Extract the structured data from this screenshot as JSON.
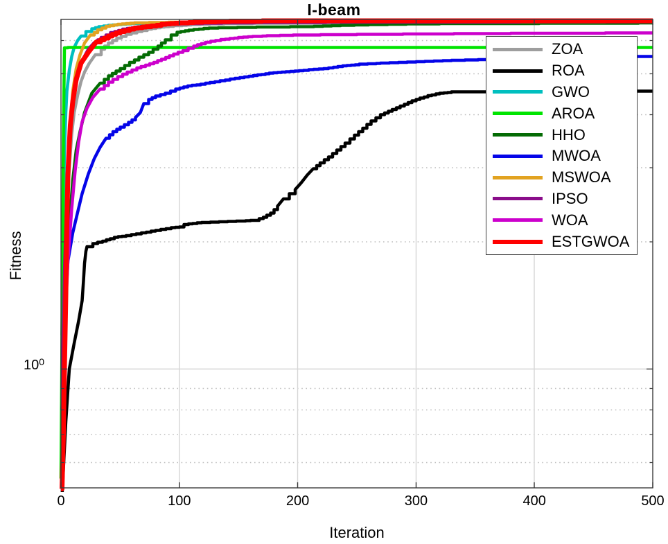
{
  "title": "I-beam",
  "axis": {
    "xlabel": "Iteration",
    "ylabel": "Fitness",
    "ytick_base": "10",
    "ytick_exp": "0"
  },
  "chart_data": {
    "type": "line",
    "title": "I-beam",
    "xlabel": "Iteration",
    "ylabel": "Fitness",
    "yscale": "log",
    "grid": true,
    "legend_position": "upper right",
    "xlim": [
      0,
      500
    ],
    "ylim": [
      0.523,
      6.73
    ],
    "xticks": [
      0,
      100,
      200,
      300,
      400,
      500
    ],
    "ytick_values": [
      1
    ],
    "yminor_values": [
      0.6,
      0.7,
      0.8,
      0.9,
      2,
      3,
      4,
      5,
      6
    ],
    "series": [
      {
        "name": "ZOA",
        "color": "#9e9e9e",
        "width": 4.5,
        "points": [
          [
            1,
            0.9
          ],
          [
            3,
            1.6
          ],
          [
            5,
            2.3
          ],
          [
            7,
            3.0
          ],
          [
            9,
            3.6
          ],
          [
            11,
            4.05
          ],
          [
            14,
            4.45
          ],
          [
            17,
            4.8
          ],
          [
            20,
            5.05
          ],
          [
            24,
            5.3
          ],
          [
            29,
            5.55
          ],
          [
            34,
            5.72
          ],
          [
            40,
            5.92
          ],
          [
            47,
            6.08
          ],
          [
            55,
            6.2
          ],
          [
            64,
            6.3
          ],
          [
            73,
            6.38
          ],
          [
            84,
            6.45
          ],
          [
            95,
            6.5
          ],
          [
            110,
            6.54
          ],
          [
            130,
            6.57
          ],
          [
            170,
            6.59
          ],
          [
            250,
            6.6
          ],
          [
            500,
            6.6
          ]
        ]
      },
      {
        "name": "ROA",
        "color": "#000000",
        "width": 4.5,
        "points": [
          [
            1,
            0.5
          ],
          [
            4,
            0.75
          ],
          [
            7,
            1.0
          ],
          [
            11,
            1.15
          ],
          [
            15,
            1.3
          ],
          [
            18,
            1.45
          ],
          [
            19,
            1.62
          ],
          [
            20,
            1.78
          ],
          [
            21,
            1.9
          ],
          [
            22,
            1.95
          ],
          [
            27,
            1.98
          ],
          [
            35,
            2.01
          ],
          [
            45,
            2.05
          ],
          [
            55,
            2.07
          ],
          [
            68,
            2.1
          ],
          [
            80,
            2.13
          ],
          [
            93,
            2.16
          ],
          [
            100,
            2.17
          ],
          [
            104,
            2.2
          ],
          [
            115,
            2.22
          ],
          [
            130,
            2.23
          ],
          [
            148,
            2.24
          ],
          [
            164,
            2.25
          ],
          [
            171,
            2.29
          ],
          [
            177,
            2.34
          ],
          [
            183,
            2.43
          ],
          [
            188,
            2.53
          ],
          [
            193,
            2.6
          ],
          [
            198,
            2.66
          ],
          [
            203,
            2.76
          ],
          [
            208,
            2.88
          ],
          [
            213,
            2.98
          ],
          [
            219,
            3.08
          ],
          [
            226,
            3.18
          ],
          [
            233,
            3.3
          ],
          [
            240,
            3.43
          ],
          [
            248,
            3.58
          ],
          [
            255,
            3.72
          ],
          [
            262,
            3.87
          ],
          [
            270,
            4.0
          ],
          [
            280,
            4.12
          ],
          [
            290,
            4.24
          ],
          [
            300,
            4.35
          ],
          [
            310,
            4.44
          ],
          [
            320,
            4.5
          ],
          [
            330,
            4.53
          ],
          [
            420,
            4.54
          ],
          [
            500,
            4.55
          ]
        ]
      },
      {
        "name": "GWO",
        "color": "#00bfbf",
        "width": 4.5,
        "points": [
          [
            1,
            1.2
          ],
          [
            2,
            2.2
          ],
          [
            3,
            3.3
          ],
          [
            4,
            4.05
          ],
          [
            5,
            4.55
          ],
          [
            7,
            5.1
          ],
          [
            9,
            5.5
          ],
          [
            11,
            5.78
          ],
          [
            14,
            6.0
          ],
          [
            17,
            6.15
          ],
          [
            21,
            6.3
          ],
          [
            26,
            6.4
          ],
          [
            32,
            6.47
          ],
          [
            40,
            6.52
          ],
          [
            55,
            6.57
          ],
          [
            75,
            6.6
          ],
          [
            110,
            6.62
          ],
          [
            500,
            6.63
          ]
        ]
      },
      {
        "name": "AROA",
        "color": "#00e400",
        "width": 4.5,
        "points": [
          [
            0,
            0.55
          ],
          [
            1,
            1.2
          ],
          [
            2,
            3.5
          ],
          [
            3,
            5.76
          ],
          [
            6,
            5.78
          ],
          [
            500,
            5.78
          ]
        ]
      },
      {
        "name": "HHO",
        "color": "#046b04",
        "width": 4.5,
        "points": [
          [
            1,
            0.8
          ],
          [
            4,
            1.5
          ],
          [
            7,
            2.2
          ],
          [
            10,
            2.8
          ],
          [
            13,
            3.3
          ],
          [
            16,
            3.65
          ],
          [
            20,
            4.05
          ],
          [
            26,
            4.5
          ],
          [
            33,
            4.75
          ],
          [
            40,
            4.95
          ],
          [
            50,
            5.15
          ],
          [
            58,
            5.32
          ],
          [
            66,
            5.48
          ],
          [
            74,
            5.62
          ],
          [
            82,
            5.82
          ],
          [
            88,
            6.02
          ],
          [
            93,
            6.18
          ],
          [
            98,
            6.28
          ],
          [
            108,
            6.35
          ],
          [
            125,
            6.42
          ],
          [
            165,
            6.45
          ],
          [
            210,
            6.47
          ],
          [
            240,
            6.52
          ],
          [
            300,
            6.57
          ],
          [
            500,
            6.6
          ]
        ]
      },
      {
        "name": "MWOA",
        "color": "#0505e8",
        "width": 4.5,
        "points": [
          [
            1,
            0.8
          ],
          [
            3,
            1.3
          ],
          [
            6,
            1.8
          ],
          [
            10,
            2.1
          ],
          [
            14,
            2.35
          ],
          [
            18,
            2.6
          ],
          [
            23,
            2.9
          ],
          [
            28,
            3.15
          ],
          [
            33,
            3.35
          ],
          [
            38,
            3.52
          ],
          [
            44,
            3.65
          ],
          [
            50,
            3.74
          ],
          [
            57,
            3.84
          ],
          [
            63,
            3.94
          ],
          [
            67,
            4.05
          ],
          [
            70,
            4.25
          ],
          [
            74,
            4.35
          ],
          [
            80,
            4.43
          ],
          [
            88,
            4.5
          ],
          [
            97,
            4.6
          ],
          [
            107,
            4.68
          ],
          [
            118,
            4.73
          ],
          [
            130,
            4.79
          ],
          [
            143,
            4.86
          ],
          [
            155,
            4.92
          ],
          [
            166,
            4.97
          ],
          [
            176,
            5.02
          ],
          [
            190,
            5.06
          ],
          [
            205,
            5.1
          ],
          [
            222,
            5.15
          ],
          [
            238,
            5.22
          ],
          [
            252,
            5.27
          ],
          [
            270,
            5.3
          ],
          [
            300,
            5.34
          ],
          [
            330,
            5.38
          ],
          [
            360,
            5.41
          ],
          [
            400,
            5.43
          ],
          [
            440,
            5.44
          ],
          [
            465,
            5.49
          ],
          [
            500,
            5.5
          ]
        ]
      },
      {
        "name": "MSWOA",
        "color": "#e2a321",
        "width": 4.5,
        "points": [
          [
            1,
            0.6
          ],
          [
            2,
            1.0
          ],
          [
            4,
            1.8
          ],
          [
            6,
            2.8
          ],
          [
            8,
            3.8
          ],
          [
            10,
            4.55
          ],
          [
            13,
            5.15
          ],
          [
            16,
            5.55
          ],
          [
            20,
            5.92
          ],
          [
            25,
            6.18
          ],
          [
            31,
            6.36
          ],
          [
            38,
            6.48
          ],
          [
            48,
            6.56
          ],
          [
            62,
            6.6
          ],
          [
            95,
            6.63
          ],
          [
            500,
            6.65
          ]
        ]
      },
      {
        "name": "IPSO",
        "color": "#8a0d8a",
        "width": 4.5,
        "points": [
          [
            1,
            0.9
          ],
          [
            3,
            1.7
          ],
          [
            5,
            2.6
          ],
          [
            7,
            3.4
          ],
          [
            9,
            4.0
          ],
          [
            11,
            4.4
          ],
          [
            13,
            4.75
          ],
          [
            16,
            5.15
          ],
          [
            19,
            5.45
          ],
          [
            23,
            5.72
          ],
          [
            28,
            5.93
          ],
          [
            34,
            6.1
          ],
          [
            42,
            6.26
          ],
          [
            52,
            6.38
          ],
          [
            64,
            6.46
          ],
          [
            78,
            6.52
          ],
          [
            95,
            6.56
          ],
          [
            120,
            6.59
          ],
          [
            160,
            6.61
          ],
          [
            260,
            6.63
          ],
          [
            500,
            6.64
          ]
        ]
      },
      {
        "name": "WOA",
        "color": "#cc00cc",
        "width": 4.5,
        "points": [
          [
            1,
            0.7
          ],
          [
            3,
            1.2
          ],
          [
            6,
            1.8
          ],
          [
            9,
            2.4
          ],
          [
            12,
            2.95
          ],
          [
            15,
            3.45
          ],
          [
            18,
            3.85
          ],
          [
            22,
            4.15
          ],
          [
            27,
            4.4
          ],
          [
            33,
            4.6
          ],
          [
            40,
            4.78
          ],
          [
            48,
            4.93
          ],
          [
            56,
            5.05
          ],
          [
            64,
            5.17
          ],
          [
            75,
            5.28
          ],
          [
            85,
            5.42
          ],
          [
            95,
            5.57
          ],
          [
            103,
            5.68
          ],
          [
            112,
            5.82
          ],
          [
            122,
            5.94
          ],
          [
            135,
            6.03
          ],
          [
            150,
            6.1
          ],
          [
            170,
            6.15
          ],
          [
            200,
            6.18
          ],
          [
            250,
            6.2
          ],
          [
            320,
            6.22
          ],
          [
            400,
            6.24
          ],
          [
            500,
            6.25
          ]
        ]
      },
      {
        "name": "ESTGWOA",
        "color": "#ff0000",
        "width": 7,
        "points": [
          [
            0,
            0.52
          ],
          [
            1,
            0.52
          ],
          [
            2,
            0.7
          ],
          [
            3,
            1.0
          ],
          [
            4,
            1.5
          ],
          [
            5,
            2.2
          ],
          [
            6,
            2.9
          ],
          [
            7,
            3.4
          ],
          [
            8,
            3.78
          ],
          [
            10,
            4.3
          ],
          [
            13,
            4.85
          ],
          [
            17,
            5.3
          ],
          [
            23,
            5.62
          ],
          [
            30,
            5.95
          ],
          [
            40,
            6.15
          ],
          [
            50,
            6.3
          ],
          [
            62,
            6.42
          ],
          [
            72,
            6.47
          ],
          [
            85,
            6.55
          ],
          [
            100,
            6.6
          ],
          [
            120,
            6.64
          ],
          [
            150,
            6.67
          ],
          [
            210,
            6.68
          ],
          [
            500,
            6.68
          ]
        ]
      }
    ]
  },
  "style": {
    "frame_color": "#3b3b3b",
    "grid_major_color": "#d6d6d6",
    "grid_minor_color": "#bdbdbd",
    "background": "#ffffff"
  }
}
